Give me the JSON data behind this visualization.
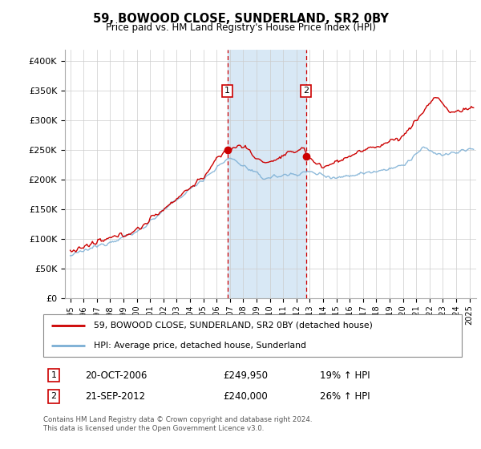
{
  "title": "59, BOWOOD CLOSE, SUNDERLAND, SR2 0BY",
  "subtitle": "Price paid vs. HM Land Registry's House Price Index (HPI)",
  "legend_line1": "59, BOWOOD CLOSE, SUNDERLAND, SR2 0BY (detached house)",
  "legend_line2": "HPI: Average price, detached house, Sunderland",
  "annotation1_date": "20-OCT-2006",
  "annotation1_price": "£249,950",
  "annotation1_hpi": "19% ↑ HPI",
  "annotation1_year": 2006.8,
  "annotation1_value": 249950,
  "annotation2_date": "21-SEP-2012",
  "annotation2_price": "£240,000",
  "annotation2_hpi": "26% ↑ HPI",
  "annotation2_year": 2012.72,
  "annotation2_value": 240000,
  "footer": "Contains HM Land Registry data © Crown copyright and database right 2024.\nThis data is licensed under the Open Government Licence v3.0.",
  "ylim": [
    0,
    420000
  ],
  "yticks": [
    0,
    50000,
    100000,
    150000,
    200000,
    250000,
    300000,
    350000,
    400000
  ],
  "ytick_labels": [
    "£0",
    "£50K",
    "£100K",
    "£150K",
    "£200K",
    "£250K",
    "£300K",
    "£350K",
    "£400K"
  ],
  "xlim_start": 1994.6,
  "xlim_end": 2025.5,
  "red_color": "#cc0000",
  "blue_color": "#7aaed4",
  "shading_color": "#d8e8f5",
  "grid_color": "#cccccc",
  "background_color": "#ffffff"
}
